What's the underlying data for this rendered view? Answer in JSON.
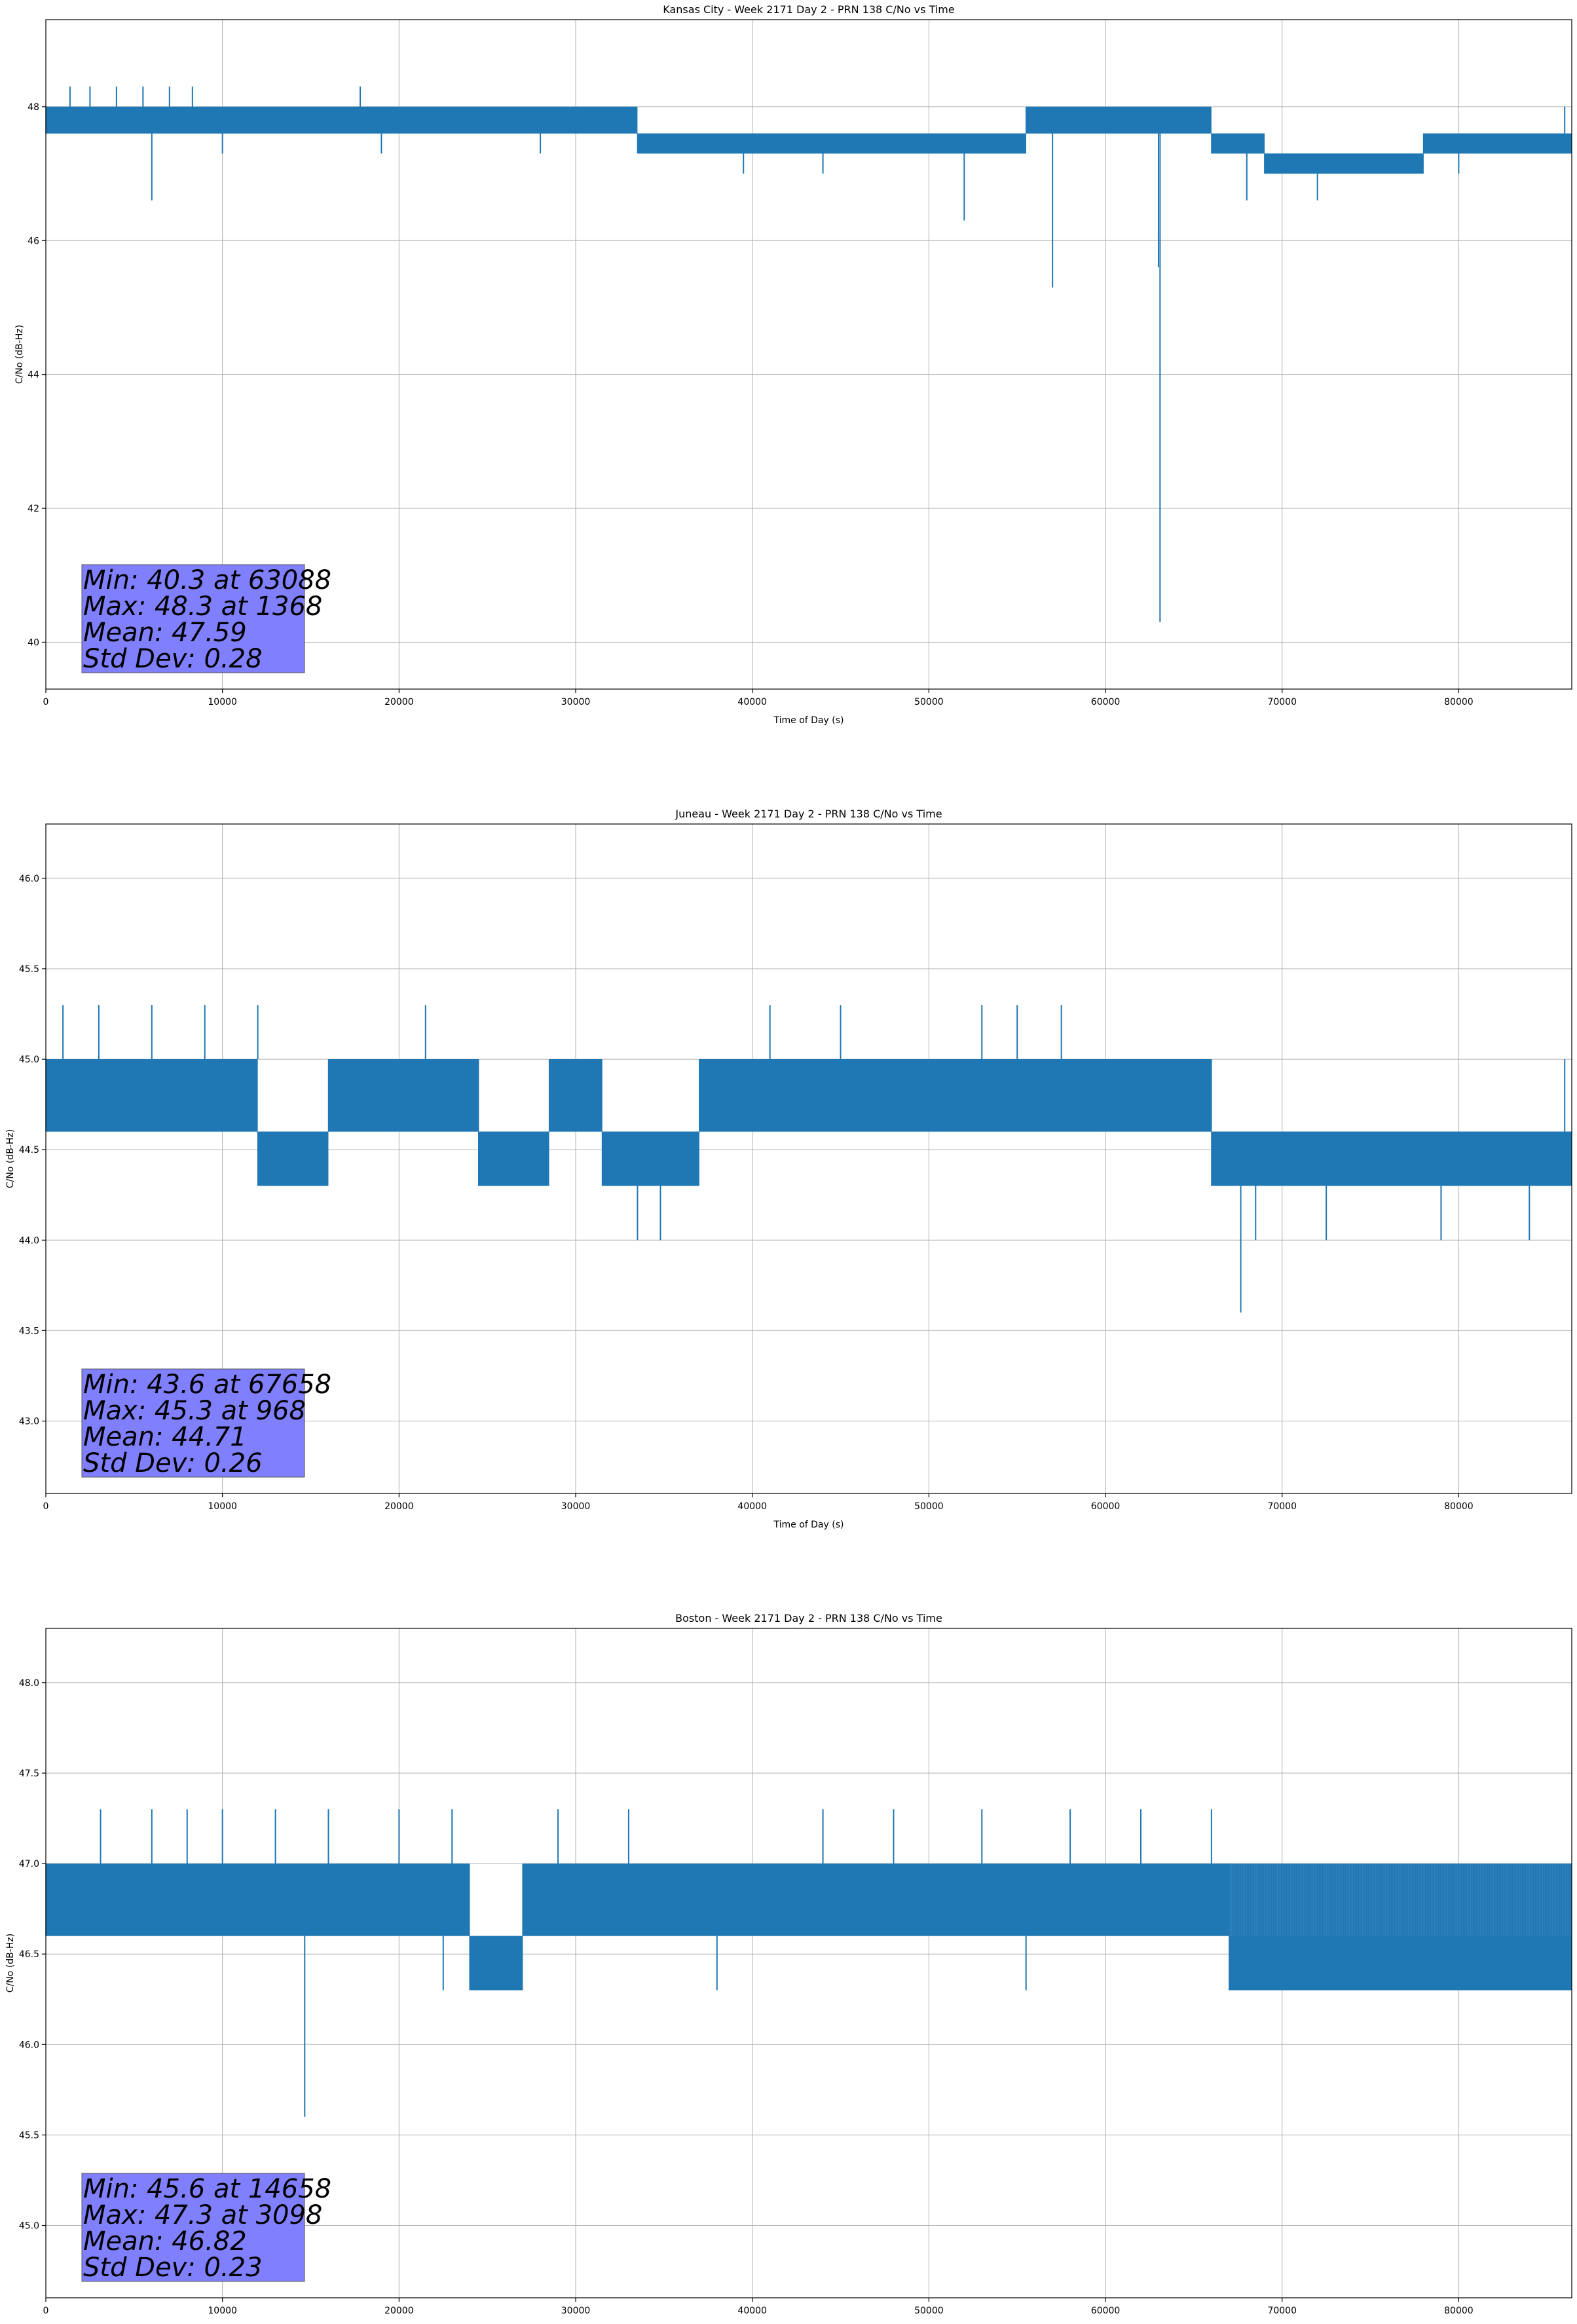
{
  "chart_data": [
    {
      "type": "line",
      "title": "Kansas City - Week 2171 Day 2 - PRN 138 C/No vs Time",
      "xlabel": "Time of Day (s)",
      "ylabel": "C/No (dB-Hz)",
      "xlim": [
        0,
        86400
      ],
      "ylim": [
        39.3,
        49.3
      ],
      "xticks": [
        0,
        10000,
        20000,
        30000,
        40000,
        50000,
        60000,
        70000,
        80000
      ],
      "yticks": [
        40,
        42,
        44,
        46,
        48
      ],
      "ytick_labels": [
        "40",
        "42",
        "44",
        "46",
        "48"
      ],
      "grid": true,
      "line_color": "#1f77b4",
      "segments": [
        {
          "x": [
            0,
            33500
          ],
          "low": 47.6,
          "high": 48.0
        },
        {
          "x": [
            33500,
            55500
          ],
          "low": 47.3,
          "high": 47.6
        },
        {
          "x": [
            55500,
            66000
          ],
          "low": 47.6,
          "high": 48.0
        },
        {
          "x": [
            66000,
            69000
          ],
          "low": 47.3,
          "high": 47.6
        },
        {
          "x": [
            69000,
            78000
          ],
          "low": 47.0,
          "high": 47.3
        },
        {
          "x": [
            78000,
            86400
          ],
          "low": 47.3,
          "high": 47.6
        }
      ],
      "spikes": [
        {
          "x": 1368,
          "y": 48.3
        },
        {
          "x": 2500,
          "y": 48.3
        },
        {
          "x": 4000,
          "y": 48.3
        },
        {
          "x": 5500,
          "y": 48.3
        },
        {
          "x": 7000,
          "y": 48.3
        },
        {
          "x": 8300,
          "y": 48.3
        },
        {
          "x": 17800,
          "y": 48.3
        },
        {
          "x": 6000,
          "y": 46.6
        },
        {
          "x": 52000,
          "y": 46.3
        },
        {
          "x": 57000,
          "y": 45.3
        },
        {
          "x": 63088,
          "y": 40.3
        },
        {
          "x": 63000,
          "y": 45.6
        },
        {
          "x": 68000,
          "y": 46.6
        },
        {
          "x": 72000,
          "y": 46.6
        },
        {
          "x": 10000,
          "y": 47.3
        },
        {
          "x": 19000,
          "y": 47.3
        },
        {
          "x": 28000,
          "y": 47.3
        },
        {
          "x": 39500,
          "y": 47.0
        },
        {
          "x": 44000,
          "y": 47.0
        },
        {
          "x": 80000,
          "y": 47.0
        },
        {
          "x": 86000,
          "y": 48.0
        }
      ],
      "stats": {
        "min_line": "Min: 40.3 at 63088",
        "max_line": "Max: 48.3 at 1368",
        "mean_line": "Mean: 47.59",
        "std_line": "Std Dev: 0.28"
      }
    },
    {
      "type": "line",
      "title": "Juneau - Week 2171 Day 2 - PRN 138 C/No vs Time",
      "xlabel": "Time of Day (s)",
      "ylabel": "C/No (dB-Hz)",
      "xlim": [
        0,
        86400
      ],
      "ylim": [
        42.6,
        46.3
      ],
      "xticks": [
        0,
        10000,
        20000,
        30000,
        40000,
        50000,
        60000,
        70000,
        80000
      ],
      "yticks": [
        43.0,
        43.5,
        44.0,
        44.5,
        45.0,
        45.5,
        46.0
      ],
      "ytick_labels": [
        "43.0",
        "43.5",
        "44.0",
        "44.5",
        "45.0",
        "45.5",
        "46.0"
      ],
      "grid": true,
      "line_color": "#1f77b4",
      "segments": [
        {
          "x": [
            0,
            12000
          ],
          "low": 44.6,
          "high": 45.0
        },
        {
          "x": [
            12000,
            16000
          ],
          "low": 44.3,
          "high": 44.6
        },
        {
          "x": [
            16000,
            24500
          ],
          "low": 44.6,
          "high": 45.0
        },
        {
          "x": [
            24500,
            28500
          ],
          "low": 44.3,
          "high": 44.6
        },
        {
          "x": [
            28500,
            31500
          ],
          "low": 44.6,
          "high": 45.0
        },
        {
          "x": [
            31500,
            37000
          ],
          "low": 44.3,
          "high": 44.6
        },
        {
          "x": [
            37000,
            59500
          ],
          "low": 44.6,
          "high": 45.0
        },
        {
          "x": [
            59500,
            66000
          ],
          "low": 44.6,
          "high": 45.0
        },
        {
          "x": [
            66000,
            86400
          ],
          "low": 44.3,
          "high": 44.6
        }
      ],
      "spikes": [
        {
          "x": 968,
          "y": 45.3
        },
        {
          "x": 3000,
          "y": 45.3
        },
        {
          "x": 6000,
          "y": 45.3
        },
        {
          "x": 9000,
          "y": 45.3
        },
        {
          "x": 12000,
          "y": 45.3
        },
        {
          "x": 21500,
          "y": 45.3
        },
        {
          "x": 41000,
          "y": 45.3
        },
        {
          "x": 45000,
          "y": 45.3
        },
        {
          "x": 53000,
          "y": 45.3
        },
        {
          "x": 55000,
          "y": 45.3
        },
        {
          "x": 57500,
          "y": 45.3
        },
        {
          "x": 33500,
          "y": 44.0
        },
        {
          "x": 34800,
          "y": 44.0
        },
        {
          "x": 67658,
          "y": 43.6
        },
        {
          "x": 68500,
          "y": 44.0
        },
        {
          "x": 72500,
          "y": 44.0
        },
        {
          "x": 79000,
          "y": 44.0
        },
        {
          "x": 84000,
          "y": 44.0
        },
        {
          "x": 86000,
          "y": 45.0
        }
      ],
      "stats": {
        "min_line": "Min: 43.6 at 67658",
        "max_line": "Max: 45.3 at 968",
        "mean_line": "Mean: 44.71",
        "std_line": "Std Dev: 0.26"
      }
    },
    {
      "type": "line",
      "title": "Boston - Week 2171 Day 2 - PRN 138 C/No vs Time",
      "xlabel": "Time of Day (s)",
      "ylabel": "C/No (dB-Hz)",
      "xlim": [
        0,
        86400
      ],
      "ylim": [
        44.6,
        48.3
      ],
      "xticks": [
        0,
        10000,
        20000,
        30000,
        40000,
        50000,
        60000,
        70000,
        80000
      ],
      "yticks": [
        45.0,
        45.5,
        46.0,
        46.5,
        47.0,
        47.5,
        48.0
      ],
      "ytick_labels": [
        "45.0",
        "45.5",
        "46.0",
        "46.5",
        "47.0",
        "47.5",
        "48.0"
      ],
      "grid": true,
      "line_color": "#1f77b4",
      "segments": [
        {
          "x": [
            0,
            24000
          ],
          "low": 46.6,
          "high": 47.0
        },
        {
          "x": [
            24000,
            27000
          ],
          "low": 46.3,
          "high": 46.6
        },
        {
          "x": [
            27000,
            67000
          ],
          "low": 46.6,
          "high": 47.0
        },
        {
          "x": [
            67000,
            86400
          ],
          "low": 46.3,
          "high": 46.6
        }
      ],
      "overlay_segments": [
        {
          "x": [
            67000,
            86400
          ],
          "low": 46.6,
          "high": 47.0
        }
      ],
      "spikes": [
        {
          "x": 3098,
          "y": 47.3
        },
        {
          "x": 6000,
          "y": 47.3
        },
        {
          "x": 8000,
          "y": 47.3
        },
        {
          "x": 10000,
          "y": 47.3
        },
        {
          "x": 13000,
          "y": 47.3
        },
        {
          "x": 16000,
          "y": 47.3
        },
        {
          "x": 20000,
          "y": 47.3
        },
        {
          "x": 23000,
          "y": 47.3
        },
        {
          "x": 29000,
          "y": 47.3
        },
        {
          "x": 33000,
          "y": 47.3
        },
        {
          "x": 44000,
          "y": 47.3
        },
        {
          "x": 48000,
          "y": 47.3
        },
        {
          "x": 53000,
          "y": 47.3
        },
        {
          "x": 58000,
          "y": 47.3
        },
        {
          "x": 62000,
          "y": 47.3
        },
        {
          "x": 66000,
          "y": 47.3
        },
        {
          "x": 14658,
          "y": 45.6
        },
        {
          "x": 38000,
          "y": 46.3
        },
        {
          "x": 55500,
          "y": 46.3
        },
        {
          "x": 22500,
          "y": 46.3
        },
        {
          "x": 71000,
          "y": 46.3
        },
        {
          "x": 86000,
          "y": 47.0
        }
      ],
      "stats": {
        "min_line": "Min: 45.6 at 14658",
        "max_line": "Max: 47.3 at 3098",
        "mean_line": "Mean: 46.82",
        "std_line": "Std Dev: 0.23"
      }
    }
  ]
}
